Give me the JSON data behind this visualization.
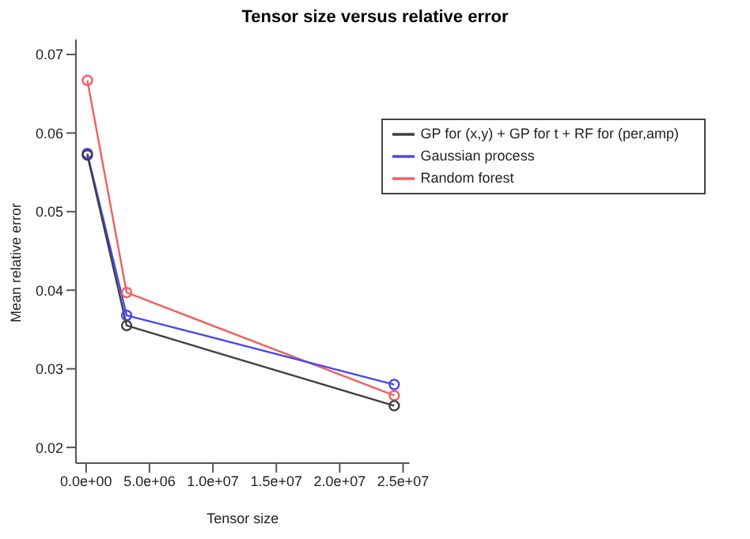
{
  "chart_data": {
    "type": "line",
    "title": "Tensor size versus relative error",
    "xlabel": "Tensor size",
    "ylabel": "Mean relative error",
    "x": [
      100000,
      3200000,
      24300000
    ],
    "series": [
      {
        "name": "Random forest",
        "color": "#f06060",
        "values": [
          0.0667,
          0.0397,
          0.0266
        ]
      },
      {
        "name": "Gaussian process",
        "color": "#4848f0",
        "values": [
          0.0574,
          0.0368,
          0.028
        ]
      },
      {
        "name": "GP for (x,y) + GP for t + RF for (per,amp)",
        "color": "#404040",
        "values": [
          0.0572,
          0.0355,
          0.0253
        ]
      }
    ],
    "xlim": [
      -800000,
      25500000
    ],
    "xticks": [
      {
        "value": 0,
        "label": "0.0e+00"
      },
      {
        "value": 5000000,
        "label": "5.0e+06"
      },
      {
        "value": 10000000,
        "label": "1.0e+07"
      },
      {
        "value": 15000000,
        "label": "1.5e+07"
      },
      {
        "value": 20000000,
        "label": "2.0e+07"
      },
      {
        "value": 25000000,
        "label": "2.5e+07"
      }
    ],
    "ylim": [
      0.018,
      0.0719
    ],
    "yticks": [
      0.02,
      0.03,
      0.04,
      0.05,
      0.06,
      0.07
    ],
    "marker": "circle",
    "grid": false,
    "legend": "top right"
  }
}
